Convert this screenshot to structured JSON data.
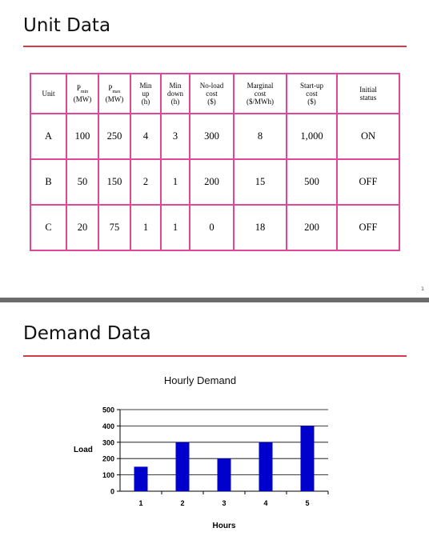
{
  "slide1": {
    "title": "Unit Data",
    "table": {
      "headers": {
        "unit": "Unit",
        "pmin_symbol": "P",
        "pmin_sub": "min",
        "pmin_unit": "(MW)",
        "pmax_symbol": "P",
        "pmax_sub": "max",
        "pmax_unit": "(MW)",
        "min_up": [
          "Min",
          "up",
          "(h)"
        ],
        "min_down": [
          "Min",
          "down",
          "(h)"
        ],
        "noload": [
          "No-load",
          "cost",
          "($)"
        ],
        "marginal": [
          "Marginal",
          "cost",
          "($/MWh)"
        ],
        "startup": [
          "Start-up",
          "cost",
          "($)"
        ],
        "initial": [
          "Initial",
          "status"
        ]
      },
      "rows": [
        {
          "unit": "A",
          "pmin": "100",
          "pmax": "250",
          "min_up": "4",
          "min_down": "3",
          "noload": "300",
          "marginal": "8",
          "startup": "1,000",
          "initial": "ON"
        },
        {
          "unit": "B",
          "pmin": "50",
          "pmax": "150",
          "min_up": "2",
          "min_down": "1",
          "noload": "200",
          "marginal": "15",
          "startup": "500",
          "initial": "OFF"
        },
        {
          "unit": "C",
          "pmin": "20",
          "pmax": "75",
          "min_up": "1",
          "min_down": "1",
          "noload": "0",
          "marginal": "18",
          "startup": "200",
          "initial": "OFF"
        }
      ]
    },
    "page_number": "1"
  },
  "slide2": {
    "title": "Demand Data"
  },
  "chart_data": {
    "type": "bar",
    "title": "Hourly Demand",
    "xlabel": "Hours",
    "ylabel": "Load",
    "categories": [
      "1",
      "2",
      "3",
      "4",
      "5"
    ],
    "values": [
      150,
      300,
      200,
      300,
      400
    ],
    "yticks": [
      "0",
      "100",
      "200",
      "300",
      "400",
      "500"
    ],
    "ylim": [
      0,
      500
    ],
    "grid": true,
    "bar_color": "#0000cc"
  }
}
